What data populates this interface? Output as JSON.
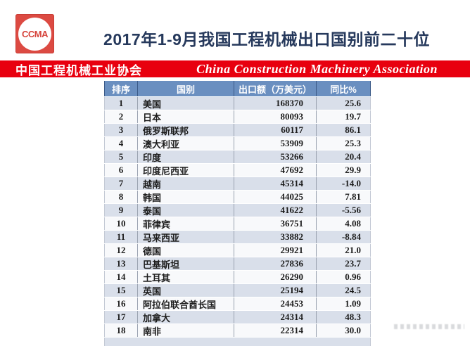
{
  "logo": {
    "text": "CCMA"
  },
  "title": "2017年1-9月我国工程机械出口国别前二十位",
  "banner": {
    "cn": "中国工程机械工业协会",
    "en": "China Construction Machinery Association"
  },
  "table": {
    "headers": [
      "排序",
      "国别",
      "出口额（万美元）",
      "同比%"
    ],
    "rows": [
      {
        "rank": "1",
        "country": "美国",
        "value": "168370",
        "yoy": "25.6"
      },
      {
        "rank": "2",
        "country": "日本",
        "value": "80093",
        "yoy": "19.7"
      },
      {
        "rank": "3",
        "country": "俄罗斯联邦",
        "value": "60117",
        "yoy": "86.1"
      },
      {
        "rank": "4",
        "country": "澳大利亚",
        "value": "53909",
        "yoy": "25.3"
      },
      {
        "rank": "5",
        "country": "印度",
        "value": "53266",
        "yoy": "20.4"
      },
      {
        "rank": "6",
        "country": "印度尼西亚",
        "value": "47692",
        "yoy": "29.9"
      },
      {
        "rank": "7",
        "country": "越南",
        "value": "45314",
        "yoy": "-14.0"
      },
      {
        "rank": "8",
        "country": "韩国",
        "value": "44025",
        "yoy": "7.81"
      },
      {
        "rank": "9",
        "country": "泰国",
        "value": "41622",
        "yoy": "-5.56"
      },
      {
        "rank": "10",
        "country": "菲律宾",
        "value": "36751",
        "yoy": "4.08"
      },
      {
        "rank": "11",
        "country": "马来西亚",
        "value": "33882",
        "yoy": "-8.84"
      },
      {
        "rank": "12",
        "country": "德国",
        "value": "29921",
        "yoy": "21.0"
      },
      {
        "rank": "13",
        "country": "巴基斯坦",
        "value": "27836",
        "yoy": "23.7"
      },
      {
        "rank": "14",
        "country": "土耳其",
        "value": "26290",
        "yoy": "0.96"
      },
      {
        "rank": "15",
        "country": "英国",
        "value": "25194",
        "yoy": "24.5"
      },
      {
        "rank": "16",
        "country": "阿拉伯联合酋长国",
        "value": "24453",
        "yoy": "1.09"
      },
      {
        "rank": "17",
        "country": "加拿大",
        "value": "24314",
        "yoy": "48.3"
      },
      {
        "rank": "18",
        "country": "南非",
        "value": "22314",
        "yoy": "30.0"
      }
    ]
  },
  "colors": {
    "banner_red": "#e8000f",
    "header_blue": "#6a8fc0",
    "alt_row": "#d9dfea",
    "title_navy": "#26395c",
    "logo_red": "#dc4a42"
  }
}
